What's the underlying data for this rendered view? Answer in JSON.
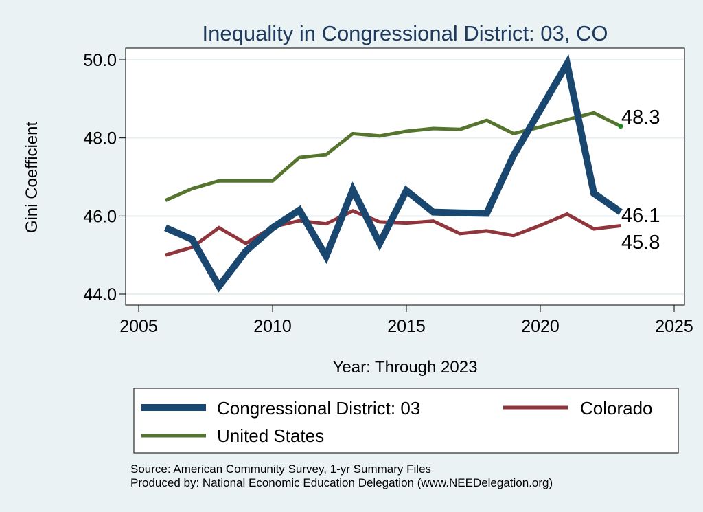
{
  "chart_data": {
    "type": "line",
    "title": "Inequality in Congressional District:  03, CO",
    "xlabel": "Year: Through 2023",
    "ylabel": "Gini Coefficient",
    "xlim": [
      2005,
      2025
    ],
    "ylim": [
      44.0,
      50.0
    ],
    "xticks": [
      "2005",
      "2010",
      "2015",
      "2020",
      "2025"
    ],
    "yticks": [
      "44.0",
      "46.0",
      "48.0",
      "50.0"
    ],
    "x": [
      2006,
      2007,
      2008,
      2009,
      2010,
      2011,
      2012,
      2013,
      2014,
      2015,
      2016,
      2017,
      2018,
      2019,
      2020,
      2021,
      2022,
      2023
    ],
    "series": [
      {
        "name": "Congressional District:  03",
        "color": "#1a476f",
        "values": [
          45.7,
          45.4,
          44.2,
          45.1,
          45.7,
          46.15,
          44.97,
          46.67,
          45.3,
          46.65,
          46.1,
          46.08,
          46.07,
          47.55,
          48.72,
          49.9,
          46.58,
          46.1
        ],
        "end_label": "46.1"
      },
      {
        "name": "Colorado",
        "color": "#90353b",
        "values": [
          45.0,
          45.2,
          45.7,
          45.3,
          45.72,
          45.88,
          45.8,
          46.13,
          45.85,
          45.82,
          45.87,
          45.55,
          45.62,
          45.5,
          45.76,
          46.05,
          45.67,
          45.75
        ],
        "end_label": "45.8"
      },
      {
        "name": "United States",
        "color": "#55752f",
        "values": [
          46.4,
          46.7,
          46.9,
          46.9,
          46.9,
          47.5,
          47.57,
          48.11,
          48.05,
          48.17,
          48.24,
          48.22,
          48.45,
          48.11,
          48.28,
          48.47,
          48.64,
          48.3
        ],
        "end_label": "48.3"
      }
    ],
    "grid": true,
    "legend_position": "bottom"
  },
  "legend": {
    "items": [
      {
        "label": "Congressional District:  03"
      },
      {
        "label": "Colorado"
      },
      {
        "label": "United States"
      }
    ]
  },
  "source": {
    "line1": "Source: American Community Survey, 1-yr Summary Files",
    "line2": "Produced by: National Economic Education Delegation (www.NEEDelegation.org)"
  }
}
